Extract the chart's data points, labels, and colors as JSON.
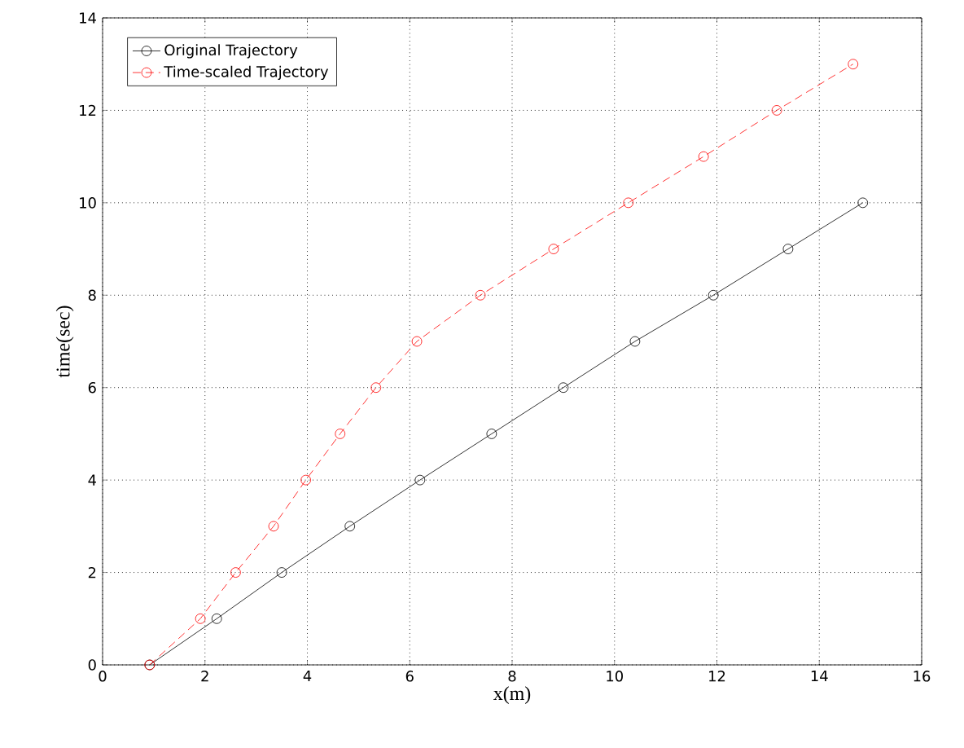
{
  "chart_data": {
    "type": "line",
    "xlabel": "x(m)",
    "ylabel": "time(sec)",
    "xlim": [
      0,
      16
    ],
    "ylim": [
      0,
      14
    ],
    "xticks": [
      0,
      2,
      4,
      6,
      8,
      10,
      12,
      14,
      16
    ],
    "yticks": [
      0,
      2,
      4,
      6,
      8,
      10,
      12,
      14
    ],
    "grid": true,
    "legend": "top left",
    "marker": "circle",
    "series": [
      {
        "name": "Original Trajectory",
        "color": "#000000",
        "line_style": "solid",
        "x": [
          0.92,
          2.23,
          3.5,
          4.83,
          6.2,
          7.6,
          9.0,
          10.4,
          11.93,
          13.39,
          14.85
        ],
        "values": [
          0,
          1,
          2,
          3,
          4,
          5,
          6,
          7,
          8,
          9,
          10
        ]
      },
      {
        "name": "Time-scaled Trajectory",
        "color": "#ff0000",
        "line_style": "dashed",
        "x": [
          0.92,
          1.91,
          2.6,
          3.34,
          3.97,
          4.64,
          5.34,
          6.14,
          7.38,
          8.81,
          10.27,
          11.74,
          13.17,
          14.66
        ],
        "values": [
          0,
          1,
          2,
          3,
          4,
          5,
          6,
          7,
          8,
          9,
          10,
          11,
          12,
          13
        ]
      }
    ]
  }
}
